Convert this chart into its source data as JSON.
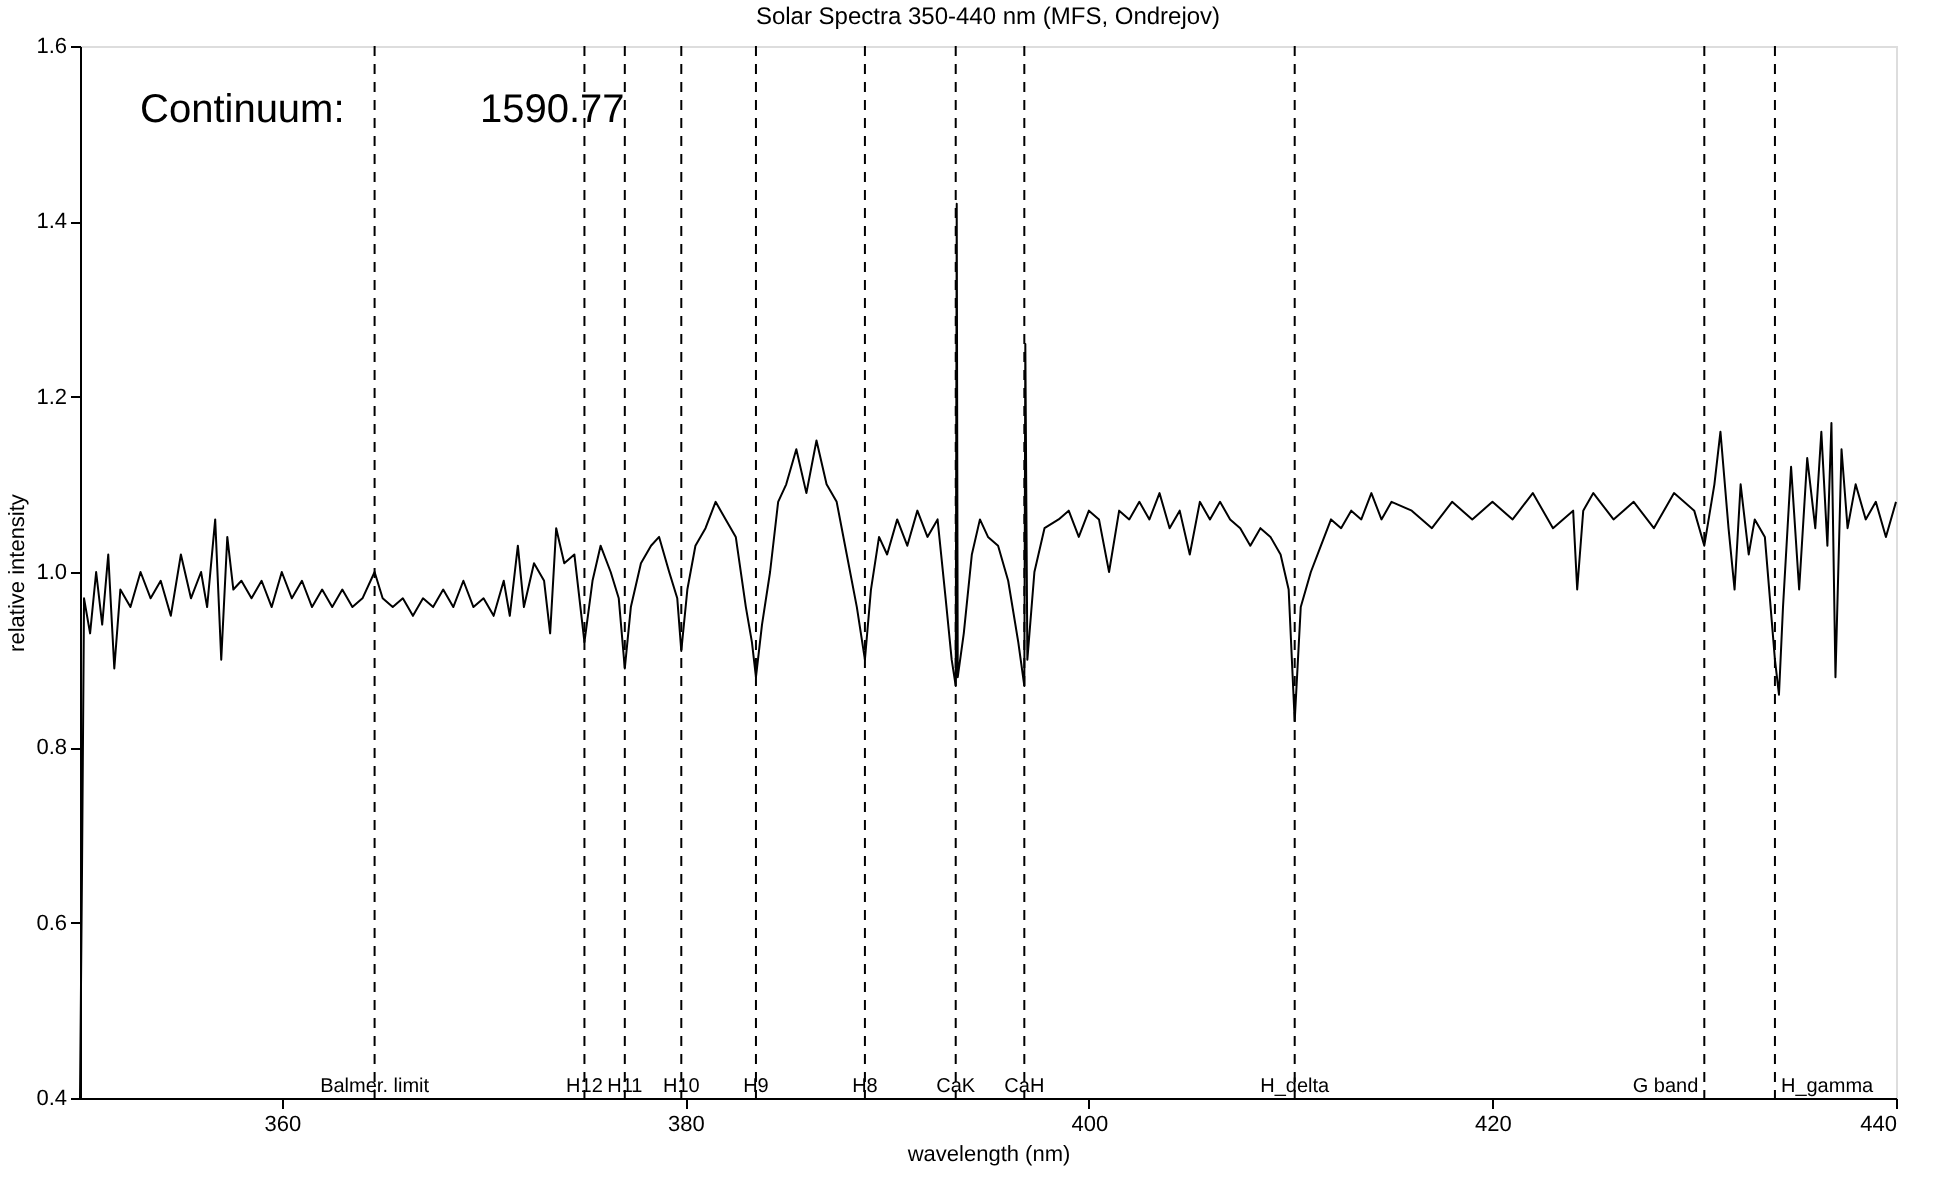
{
  "chart_data": {
    "type": "line",
    "title": "Solar Spectra 350-440 nm (MFS, Ondrejov)",
    "xlabel": "wavelength (nm)",
    "ylabel": "relative intensity",
    "annotations": [
      "Continuum:",
      "1590.77"
    ],
    "xlim": [
      350,
      440
    ],
    "xticks": [
      360,
      380,
      400,
      420,
      440
    ],
    "ylim": [
      0.4,
      1.6
    ],
    "yticks": [
      {
        "value": 0.4,
        "label": "0.4"
      },
      {
        "value": 0.6,
        "label": "0.6"
      },
      {
        "value": 0.8,
        "label": "0.8"
      },
      {
        "value": 1.0,
        "label": "1.0"
      },
      {
        "value": 1.2,
        "label": "1.2"
      },
      {
        "value": 1.4,
        "label": "1.4"
      },
      {
        "value": 1.6,
        "label": "1.6"
      }
    ],
    "grid": false,
    "marker": "none",
    "line_style": "solid",
    "ref_lines": [
      {
        "axis": "x",
        "value": 364.6,
        "label": "Balmer. limit",
        "line_style": "dashed",
        "color": "#000000"
      },
      {
        "axis": "x",
        "value": 375.0,
        "label": "H12",
        "line_style": "dashed",
        "color": "#000000"
      },
      {
        "axis": "x",
        "value": 377.0,
        "label": "H11",
        "line_style": "dashed",
        "color": "#000000"
      },
      {
        "axis": "x",
        "value": 379.8,
        "label": "H10",
        "line_style": "dashed",
        "color": "#000000"
      },
      {
        "axis": "x",
        "value": 383.5,
        "label": "H9",
        "line_style": "dashed",
        "color": "#000000"
      },
      {
        "axis": "x",
        "value": 388.9,
        "label": "H8",
        "line_style": "dashed",
        "color": "#000000"
      },
      {
        "axis": "x",
        "value": 393.4,
        "label": "CaK",
        "line_style": "dashed",
        "color": "#000000"
      },
      {
        "axis": "x",
        "value": 396.8,
        "label": "CaH",
        "line_style": "dashed",
        "color": "#000000"
      },
      {
        "axis": "x",
        "value": 410.2,
        "label": "H_delta",
        "line_style": "dashed",
        "color": "#000000"
      },
      {
        "axis": "x",
        "value": 430.5,
        "label": "G band",
        "line_style": "dashed",
        "color": "#000000"
      },
      {
        "axis": "x",
        "value": 434.0,
        "label": "H_gamma",
        "line_style": "dashed",
        "color": "#000000"
      }
    ],
    "series": [
      {
        "color": "#000000",
        "x": [
          350.0,
          350.1,
          350.2,
          350.5,
          350.8,
          351.1,
          351.4,
          351.7,
          352.0,
          352.5,
          353,
          353.5,
          354,
          354.5,
          355,
          355.5,
          356,
          356.3,
          356.7,
          357.0,
          357.3,
          357.6,
          358,
          358.5,
          359,
          359.5,
          360,
          360.5,
          361,
          361.5,
          362,
          362.5,
          363,
          363.5,
          364,
          364.6,
          365,
          365.5,
          366,
          366.5,
          367,
          367.5,
          368,
          368.5,
          369,
          369.5,
          370,
          370.5,
          371,
          371.3,
          371.7,
          372,
          372.5,
          373,
          373.3,
          373.6,
          374,
          374.5,
          375.0,
          375.4,
          375.8,
          376.3,
          376.7,
          377.0,
          377.3,
          377.8,
          378.3,
          378.7,
          379.2,
          379.6,
          379.8,
          380.1,
          380.5,
          381,
          381.5,
          382,
          382.5,
          383,
          383.3,
          383.5,
          383.8,
          384.2,
          384.6,
          385,
          385.5,
          386,
          386.5,
          387,
          387.5,
          388,
          388.5,
          388.9,
          389.2,
          389.6,
          390,
          390.5,
          391,
          391.5,
          392,
          392.5,
          392.9,
          393.2,
          393.4,
          393.45,
          393.5,
          393.8,
          394.2,
          394.6,
          395,
          395.5,
          396,
          396.5,
          396.8,
          396.85,
          396.95,
          397.3,
          397.8,
          398.5,
          399,
          399.5,
          400,
          400.5,
          401,
          401.5,
          402,
          402.5,
          403,
          403.5,
          404,
          404.5,
          405,
          405.5,
          406,
          406.5,
          407,
          407.5,
          408,
          408.5,
          409,
          409.5,
          409.9,
          410.2,
          410.5,
          411,
          411.5,
          412,
          412.5,
          413,
          413.5,
          414,
          414.5,
          415,
          416,
          417,
          418,
          419,
          420,
          421,
          422,
          423,
          424,
          424.2,
          424.5,
          425,
          426,
          427,
          428,
          429,
          430,
          430.5,
          431,
          431.3,
          431.7,
          432,
          432.3,
          432.7,
          433,
          433.5,
          434.0,
          434.2,
          434.4,
          434.8,
          435.2,
          435.6,
          436,
          436.3,
          436.6,
          436.8,
          437.0,
          437.3,
          437.6,
          438,
          438.5,
          439,
          439.5,
          440
        ],
        "values": [
          0.4,
          0.66,
          0.97,
          0.93,
          1.0,
          0.94,
          1.02,
          0.89,
          0.98,
          0.96,
          1.0,
          0.97,
          0.99,
          0.95,
          1.02,
          0.97,
          1.0,
          0.96,
          1.06,
          0.9,
          1.04,
          0.98,
          0.99,
          0.97,
          0.99,
          0.96,
          1.0,
          0.97,
          0.99,
          0.96,
          0.98,
          0.96,
          0.98,
          0.96,
          0.97,
          1.0,
          0.97,
          0.96,
          0.97,
          0.95,
          0.97,
          0.96,
          0.98,
          0.96,
          0.99,
          0.96,
          0.97,
          0.95,
          0.99,
          0.95,
          1.03,
          0.96,
          1.01,
          0.99,
          0.93,
          1.05,
          1.01,
          1.02,
          0.92,
          0.99,
          1.03,
          1.0,
          0.97,
          0.89,
          0.96,
          1.01,
          1.03,
          1.04,
          1.0,
          0.97,
          0.91,
          0.98,
          1.03,
          1.05,
          1.08,
          1.06,
          1.04,
          0.96,
          0.92,
          0.88,
          0.94,
          1.0,
          1.08,
          1.1,
          1.14,
          1.09,
          1.15,
          1.1,
          1.08,
          1.02,
          0.96,
          0.9,
          0.98,
          1.04,
          1.02,
          1.06,
          1.03,
          1.07,
          1.04,
          1.06,
          0.97,
          0.9,
          0.87,
          1.42,
          0.88,
          0.93,
          1.02,
          1.06,
          1.04,
          1.03,
          0.99,
          0.92,
          0.87,
          1.26,
          0.9,
          1.0,
          1.05,
          1.06,
          1.07,
          1.04,
          1.07,
          1.06,
          1.0,
          1.07,
          1.06,
          1.08,
          1.06,
          1.09,
          1.05,
          1.07,
          1.02,
          1.08,
          1.06,
          1.08,
          1.06,
          1.05,
          1.03,
          1.05,
          1.04,
          1.02,
          0.98,
          0.83,
          0.96,
          1.0,
          1.03,
          1.06,
          1.05,
          1.07,
          1.06,
          1.09,
          1.06,
          1.08,
          1.07,
          1.05,
          1.08,
          1.06,
          1.08,
          1.06,
          1.09,
          1.05,
          1.07,
          0.98,
          1.07,
          1.09,
          1.06,
          1.08,
          1.05,
          1.09,
          1.07,
          1.03,
          1.1,
          1.16,
          1.05,
          0.98,
          1.1,
          1.02,
          1.06,
          1.04,
          0.9,
          0.86,
          0.96,
          1.12,
          0.98,
          1.13,
          1.05,
          1.16,
          1.03,
          1.17,
          0.88,
          1.14,
          1.05,
          1.1,
          1.06,
          1.08,
          1.04,
          1.08
        ]
      }
    ]
  }
}
